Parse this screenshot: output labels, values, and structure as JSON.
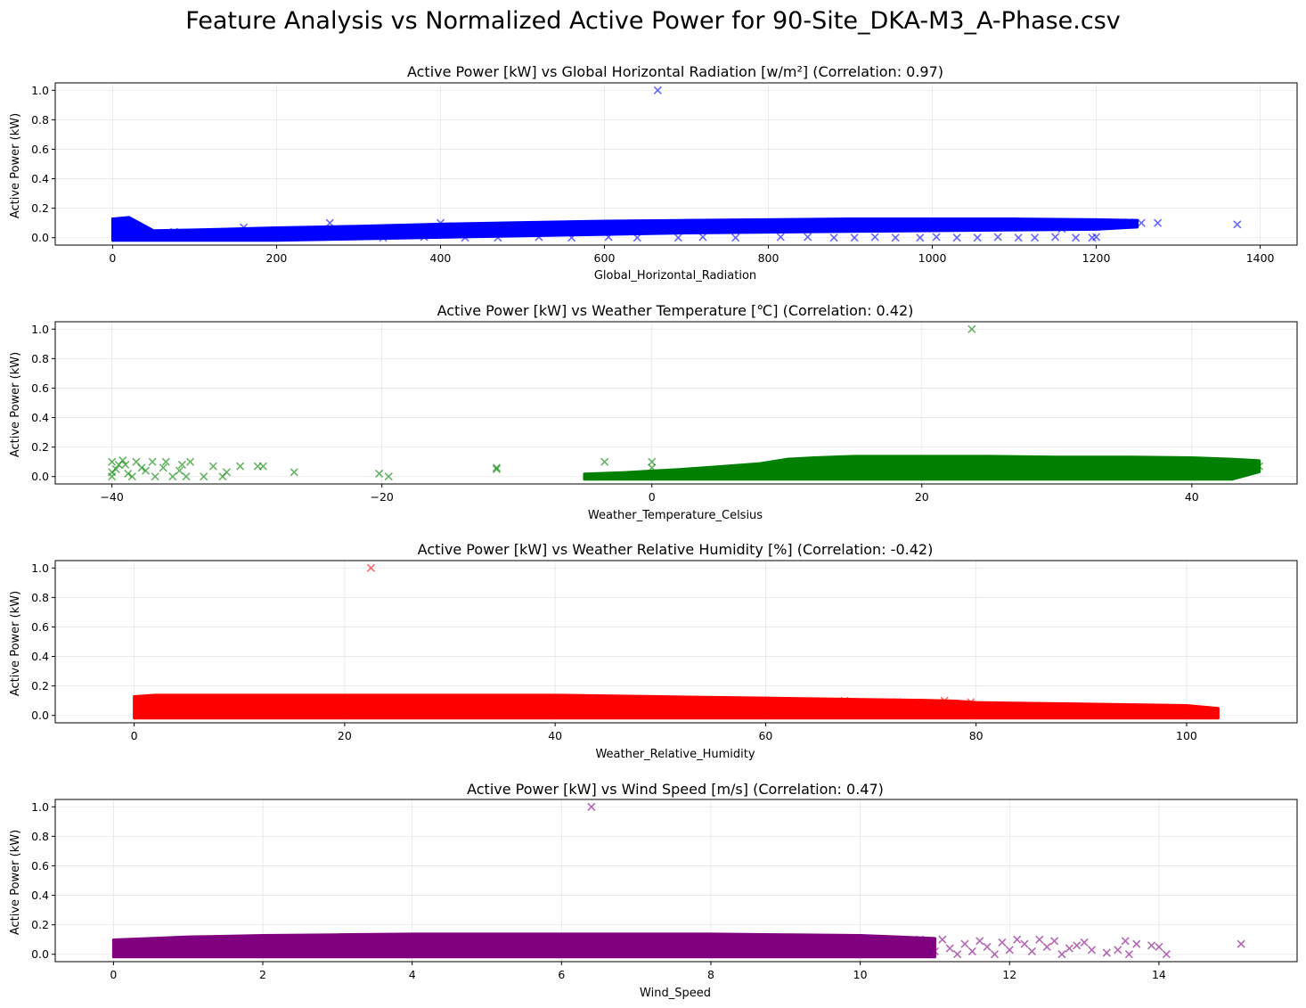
{
  "figure": {
    "suptitle": "Feature Analysis vs Normalized Active Power for 90-Site_DKA-M3_A-Phase.csv"
  },
  "chart_data": [
    {
      "type": "scatter",
      "title": "Active Power [kW] vs Global Horizontal Radiation [w/m²] (Correlation: 0.97)",
      "xlabel": "Global_Horizontal_Radiation",
      "ylabel": "Active Power (kW)",
      "xlim": [
        -70,
        1445
      ],
      "ylim": [
        -0.05,
        1.05
      ],
      "xticks": [
        0,
        200,
        400,
        600,
        800,
        1000,
        1200,
        1400
      ],
      "yticks": [
        0.0,
        0.2,
        0.4,
        0.6,
        0.8,
        1.0
      ],
      "ytick_labels": [
        "0.0",
        "0.2",
        "0.4",
        "0.6",
        "0.8",
        "1.0"
      ],
      "color": "#0000ff",
      "marker": "x",
      "grid": true,
      "band": {
        "x": [
          0,
          20,
          50,
          100,
          200,
          300,
          400,
          500,
          600,
          700,
          800,
          900,
          1000,
          1100,
          1200,
          1250
        ],
        "upper": [
          0.11,
          0.12,
          0.03,
          0.035,
          0.05,
          0.06,
          0.075,
          0.085,
          0.095,
          0.1,
          0.105,
          0.11,
          0.11,
          0.11,
          0.105,
          0.1
        ],
        "lower": [
          0.0,
          0.0,
          0.0,
          0.0,
          0.0,
          0.01,
          0.02,
          0.03,
          0.04,
          0.05,
          0.055,
          0.06,
          0.065,
          0.07,
          0.075,
          0.09
        ]
      },
      "points": [
        {
          "x": 665,
          "y": 1.0
        },
        {
          "x": 1372,
          "y": 0.09
        },
        {
          "x": 1275,
          "y": 0.1
        },
        {
          "x": 1255,
          "y": 0.1
        },
        {
          "x": 1240,
          "y": 0.105
        },
        {
          "x": 265,
          "y": 0.1
        },
        {
          "x": 400,
          "y": 0.1
        },
        {
          "x": 160,
          "y": 0.07
        },
        {
          "x": 75,
          "y": 0.04
        },
        {
          "x": 815,
          "y": 0.005
        },
        {
          "x": 848,
          "y": 0.005
        },
        {
          "x": 880,
          "y": 0.0
        },
        {
          "x": 905,
          "y": 0.0
        },
        {
          "x": 930,
          "y": 0.005
        },
        {
          "x": 955,
          "y": 0.0
        },
        {
          "x": 985,
          "y": 0.0
        },
        {
          "x": 1005,
          "y": 0.005
        },
        {
          "x": 1030,
          "y": 0.0
        },
        {
          "x": 1055,
          "y": 0.0
        },
        {
          "x": 1080,
          "y": 0.005
        },
        {
          "x": 1105,
          "y": 0.0
        },
        {
          "x": 1125,
          "y": 0.0
        },
        {
          "x": 1150,
          "y": 0.005
        },
        {
          "x": 1175,
          "y": 0.0
        },
        {
          "x": 1195,
          "y": 0.0
        },
        {
          "x": 1200,
          "y": 0.005
        },
        {
          "x": 760,
          "y": 0.0
        },
        {
          "x": 720,
          "y": 0.005
        },
        {
          "x": 690,
          "y": 0.0
        },
        {
          "x": 640,
          "y": 0.0
        },
        {
          "x": 605,
          "y": 0.005
        },
        {
          "x": 560,
          "y": 0.0
        },
        {
          "x": 520,
          "y": 0.005
        },
        {
          "x": 470,
          "y": 0.0
        },
        {
          "x": 430,
          "y": 0.0
        },
        {
          "x": 380,
          "y": 0.005
        },
        {
          "x": 330,
          "y": 0.0
        },
        {
          "x": 1098,
          "y": 0.095
        },
        {
          "x": 1158,
          "y": 0.06
        }
      ]
    },
    {
      "type": "scatter",
      "title": "Active Power [kW] vs Weather Temperature [℃] (Correlation: 0.42)",
      "xlabel": "Weather_Temperature_Celsius",
      "ylabel": "Active Power (kW)",
      "xlim": [
        -44.2,
        47.8
      ],
      "ylim": [
        -0.05,
        1.05
      ],
      "xticks": [
        -40,
        -20,
        0,
        20,
        40
      ],
      "xtick_labels": [
        "−40",
        "−20",
        "0",
        "20",
        "40"
      ],
      "yticks": [
        0.0,
        0.2,
        0.4,
        0.6,
        0.8,
        1.0
      ],
      "ytick_labels": [
        "0.0",
        "0.2",
        "0.4",
        "0.6",
        "0.8",
        "1.0"
      ],
      "color": "#008000",
      "marker": "x",
      "grid": true,
      "band": {
        "x": [
          -5,
          -2,
          0,
          2,
          5,
          8,
          10,
          12,
          15,
          20,
          25,
          30,
          35,
          40,
          43,
          45
        ],
        "upper": [
          0.0,
          0.01,
          0.02,
          0.03,
          0.05,
          0.07,
          0.1,
          0.11,
          0.12,
          0.12,
          0.12,
          0.115,
          0.115,
          0.11,
          0.1,
          0.09
        ],
        "lower": [
          0.0,
          0.0,
          0.0,
          0.0,
          0.0,
          0.0,
          0.0,
          0.0,
          0.0,
          0.0,
          0.0,
          0.0,
          0.0,
          0.0,
          0.0,
          0.05
        ]
      },
      "points": [
        {
          "x": 23.7,
          "y": 1.0
        },
        {
          "x": -3.5,
          "y": 0.1
        },
        {
          "x": -26.5,
          "y": 0.03
        },
        {
          "x": -28.8,
          "y": 0.07
        },
        {
          "x": -29.2,
          "y": 0.07
        },
        {
          "x": -30.5,
          "y": 0.07
        },
        {
          "x": -31.5,
          "y": 0.03
        },
        {
          "x": -31.8,
          "y": 0.0
        },
        {
          "x": -32.5,
          "y": 0.07
        },
        {
          "x": -33.2,
          "y": 0.0
        },
        {
          "x": -19.5,
          "y": 0.0
        },
        {
          "x": -20.2,
          "y": 0.02
        },
        {
          "x": -11.5,
          "y": 0.06
        },
        {
          "x": -11.5,
          "y": 0.05
        },
        {
          "x": -34.2,
          "y": 0.1
        },
        {
          "x": -34.8,
          "y": 0.08
        },
        {
          "x": -35.5,
          "y": 0.0
        },
        {
          "x": -36.2,
          "y": 0.06
        },
        {
          "x": -37.0,
          "y": 0.1
        },
        {
          "x": -37.5,
          "y": 0.04
        },
        {
          "x": -38.2,
          "y": 0.1
        },
        {
          "x": -38.8,
          "y": 0.02
        },
        {
          "x": -39.5,
          "y": 0.08
        },
        {
          "x": -40.0,
          "y": 0.1
        },
        {
          "x": -40.0,
          "y": 0.0
        },
        {
          "x": -39.7,
          "y": 0.05
        },
        {
          "x": -39.0,
          "y": 0.08
        },
        {
          "x": -38.5,
          "y": 0.0
        },
        {
          "x": -37.8,
          "y": 0.06
        },
        {
          "x": -36.8,
          "y": 0.0
        },
        {
          "x": -36.0,
          "y": 0.1
        },
        {
          "x": -35.0,
          "y": 0.04
        },
        {
          "x": -34.5,
          "y": 0.0
        },
        {
          "x": -40.0,
          "y": 0.03
        },
        {
          "x": -39.2,
          "y": 0.11
        },
        {
          "x": -4.5,
          "y": 0.0
        },
        {
          "x": 0.0,
          "y": 0.1
        },
        {
          "x": 0.0,
          "y": 0.06
        },
        {
          "x": 45.0,
          "y": 0.07
        },
        {
          "x": 44.5,
          "y": 0.09
        }
      ]
    },
    {
      "type": "scatter",
      "title": "Active Power [kW] vs Weather Relative Humidity [%] (Correlation: -0.42)",
      "xlabel": "Weather_Relative_Humidity",
      "ylabel": "Active Power (kW)",
      "xlim": [
        -7.5,
        110.5
      ],
      "ylim": [
        -0.05,
        1.05
      ],
      "xticks": [
        0,
        20,
        40,
        60,
        80,
        100
      ],
      "yticks": [
        0.0,
        0.2,
        0.4,
        0.6,
        0.8,
        1.0
      ],
      "ytick_labels": [
        "0.0",
        "0.2",
        "0.4",
        "0.6",
        "0.8",
        "1.0"
      ],
      "color": "#ff0000",
      "marker": "x",
      "grid": true,
      "band": {
        "x": [
          0,
          2,
          5,
          10,
          20,
          30,
          40,
          50,
          60,
          65,
          70,
          75,
          78,
          80,
          85,
          90,
          95,
          100,
          103
        ],
        "upper": [
          0.11,
          0.12,
          0.12,
          0.12,
          0.12,
          0.12,
          0.12,
          0.11,
          0.1,
          0.095,
          0.09,
          0.085,
          0.08,
          0.07,
          0.065,
          0.06,
          0.055,
          0.05,
          0.03
        ],
        "lower": [
          0.0,
          0.0,
          0.0,
          0.0,
          0.0,
          0.0,
          0.0,
          0.0,
          0.0,
          0.0,
          0.0,
          0.0,
          0.0,
          0.0,
          0.0,
          0.0,
          0.0,
          0.0,
          0.0
        ]
      },
      "points": [
        {
          "x": 22.5,
          "y": 1.0
        },
        {
          "x": 79.5,
          "y": 0.09
        },
        {
          "x": 77.0,
          "y": 0.1
        },
        {
          "x": 72.5,
          "y": 0.09
        },
        {
          "x": 67.5,
          "y": 0.1
        },
        {
          "x": 2.0,
          "y": 0.1
        },
        {
          "x": 2.5,
          "y": 0.05
        }
      ]
    },
    {
      "type": "scatter",
      "title": "Active Power [kW] vs Wind Speed [m/s] (Correlation: 0.47)",
      "xlabel": "Wind_Speed",
      "ylabel": "Active Power (kW)",
      "xlim": [
        -0.78,
        15.85
      ],
      "ylim": [
        -0.05,
        1.05
      ],
      "xticks": [
        0,
        2,
        4,
        6,
        8,
        10,
        12,
        14
      ],
      "yticks": [
        0.0,
        0.2,
        0.4,
        0.6,
        0.8,
        1.0
      ],
      "ytick_labels": [
        "0.0",
        "0.2",
        "0.4",
        "0.6",
        "0.8",
        "1.0"
      ],
      "color": "#800080",
      "marker": "x",
      "grid": true,
      "band": {
        "x": [
          0,
          0.5,
          1,
          2,
          3,
          4,
          5,
          6,
          7,
          8,
          9,
          10,
          10.5,
          11
        ],
        "upper": [
          0.08,
          0.09,
          0.1,
          0.11,
          0.115,
          0.12,
          0.12,
          0.12,
          0.12,
          0.12,
          0.115,
          0.11,
          0.1,
          0.09
        ],
        "lower": [
          0.0,
          0.0,
          0.0,
          0.0,
          0.0,
          0.0,
          0.0,
          0.0,
          0.0,
          0.0,
          0.0,
          0.0,
          0.0,
          0.0
        ]
      },
      "points": [
        {
          "x": 6.4,
          "y": 1.0
        },
        {
          "x": 15.1,
          "y": 0.07
        },
        {
          "x": 14.1,
          "y": 0.0
        },
        {
          "x": 14.0,
          "y": 0.05
        },
        {
          "x": 13.9,
          "y": 0.06
        },
        {
          "x": 13.7,
          "y": 0.07
        },
        {
          "x": 13.55,
          "y": 0.09
        },
        {
          "x": 13.6,
          "y": 0.0
        },
        {
          "x": 13.45,
          "y": 0.03
        },
        {
          "x": 13.3,
          "y": 0.01
        },
        {
          "x": 13.1,
          "y": 0.03
        },
        {
          "x": 13.0,
          "y": 0.08
        },
        {
          "x": 12.9,
          "y": 0.06
        },
        {
          "x": 12.8,
          "y": 0.04
        },
        {
          "x": 12.7,
          "y": 0.0
        },
        {
          "x": 12.6,
          "y": 0.09
        },
        {
          "x": 12.5,
          "y": 0.05
        },
        {
          "x": 12.4,
          "y": 0.1
        },
        {
          "x": 12.3,
          "y": 0.02
        },
        {
          "x": 12.2,
          "y": 0.07
        },
        {
          "x": 12.1,
          "y": 0.1
        },
        {
          "x": 12.0,
          "y": 0.03
        },
        {
          "x": 11.9,
          "y": 0.08
        },
        {
          "x": 11.8,
          "y": 0.0
        },
        {
          "x": 11.7,
          "y": 0.05
        },
        {
          "x": 11.6,
          "y": 0.09
        },
        {
          "x": 11.5,
          "y": 0.02
        },
        {
          "x": 11.4,
          "y": 0.07
        },
        {
          "x": 11.3,
          "y": 0.0
        },
        {
          "x": 11.2,
          "y": 0.04
        },
        {
          "x": 11.1,
          "y": 0.1
        },
        {
          "x": 11.0,
          "y": 0.02
        },
        {
          "x": 10.9,
          "y": 0.06
        },
        {
          "x": 10.8,
          "y": 0.1
        },
        {
          "x": 10.7,
          "y": 0.03
        },
        {
          "x": 10.6,
          "y": 0.08
        }
      ]
    }
  ]
}
